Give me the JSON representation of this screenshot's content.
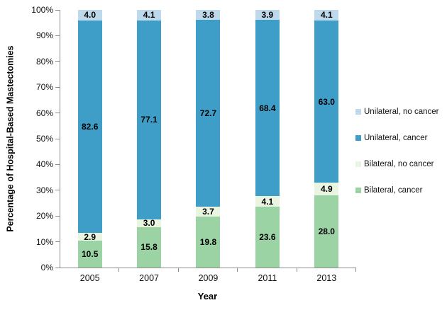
{
  "chart_data": {
    "type": "bar",
    "stacked": true,
    "title": "",
    "xlabel": "Year",
    "ylabel": "Percentage of Hospital-Based  Mastectomies",
    "categories": [
      "2005",
      "2007",
      "2009",
      "2011",
      "2013"
    ],
    "series": [
      {
        "name": "Bilateral, cancer",
        "color": "#9bd3a5",
        "values": [
          10.5,
          15.8,
          19.8,
          23.6,
          28.0
        ]
      },
      {
        "name": "Bilateral, no cancer",
        "color": "#e9f5e1",
        "values": [
          2.9,
          3.0,
          3.7,
          4.1,
          4.9
        ]
      },
      {
        "name": "Unilateral, cancer",
        "color": "#3f9ec8",
        "values": [
          82.6,
          77.1,
          72.7,
          68.4,
          63.0
        ]
      },
      {
        "name": "Unilateral, no cancer",
        "color": "#bdd9eb",
        "values": [
          4.0,
          4.1,
          3.8,
          3.9,
          4.1
        ]
      }
    ],
    "legend_order": [
      "Unilateral, no cancer",
      "Unilateral, cancer",
      "Bilateral, no cancer",
      "Bilateral, cancer"
    ],
    "ylim": [
      0,
      100
    ],
    "ytick_labels": [
      "0%",
      "10%",
      "20%",
      "30%",
      "40%",
      "50%",
      "60%",
      "70%",
      "80%",
      "90%",
      "100%"
    ],
    "value_label_decimals": 1,
    "grid": false,
    "legend_position": "right",
    "axis_color": "#8c8c8c"
  }
}
